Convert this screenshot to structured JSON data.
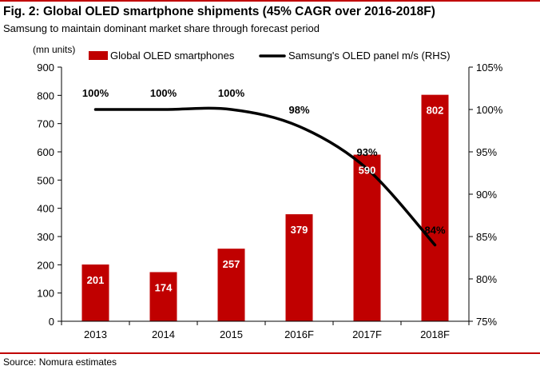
{
  "figure": {
    "title": "Fig. 2: Global OLED smartphone shipments (45% CAGR over 2016-2018F)",
    "subtitle": "Samsung to maintain dominant market share through forecast period",
    "source": "Source: Nomura estimates",
    "accent_color": "#c00000"
  },
  "chart_data": {
    "type": "bar",
    "categories": [
      "2013",
      "2014",
      "2015",
      "2016F",
      "2017F",
      "2018F"
    ],
    "series": [
      {
        "name": "Global OLED smartphones",
        "kind": "bar",
        "axis": "left",
        "color": "#c00000",
        "values": [
          201,
          174,
          257,
          379,
          590,
          802
        ],
        "labels": [
          "201",
          "174",
          "257",
          "379",
          "590",
          "802"
        ]
      },
      {
        "name": "Samsung's OLED panel m/s (RHS)",
        "kind": "line",
        "axis": "right",
        "color": "#000000",
        "values": [
          100,
          100,
          100,
          98,
          93,
          84
        ],
        "labels": [
          "100%",
          "100%",
          "100%",
          "98%",
          "93%",
          "84%"
        ]
      }
    ],
    "y_left": {
      "unit_label": "(mn units)",
      "min": 0,
      "max": 900,
      "ticks": [
        "0",
        "100",
        "200",
        "300",
        "400",
        "500",
        "600",
        "700",
        "800",
        "900"
      ]
    },
    "y_right": {
      "min": 75,
      "max": 105,
      "ticks": [
        "75%",
        "80%",
        "85%",
        "90%",
        "95%",
        "100%",
        "105%"
      ]
    },
    "grid": false,
    "legend_position": "top"
  }
}
